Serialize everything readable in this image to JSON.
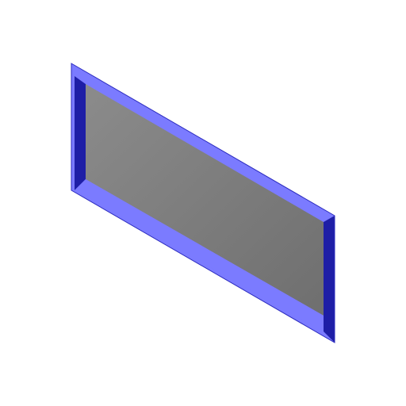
{
  "scene": {
    "object": "frame-with-gray-panel",
    "colors": {
      "background": "#ffffff",
      "frame_light": "#7b7bff",
      "frame_dark": "#1e1ea6",
      "frame_edge": "#2b2bbf",
      "panel_light": "#8b8b8b",
      "panel_dark": "#6f6f6f"
    }
  }
}
